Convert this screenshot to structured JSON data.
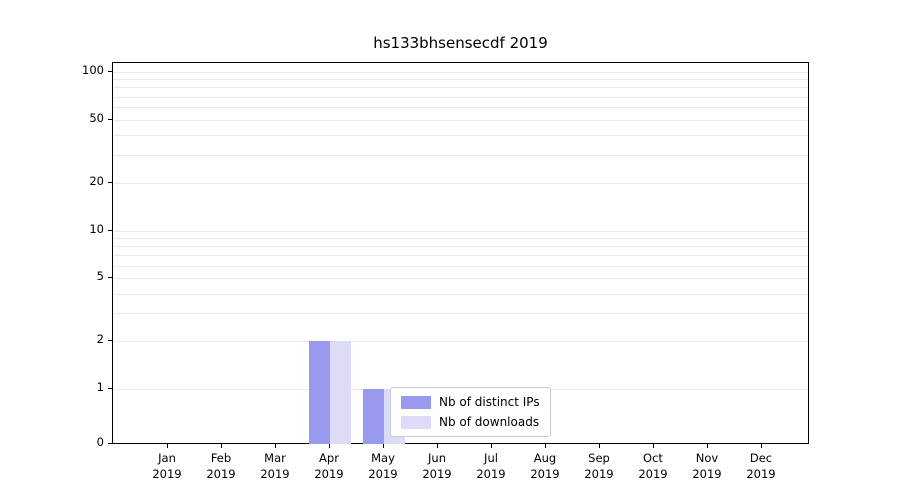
{
  "chart_data": {
    "type": "bar",
    "title": "hs133bhsensecdf 2019",
    "categories": [
      "Jan 2019",
      "Feb 2019",
      "Mar 2019",
      "Apr 2019",
      "May 2019",
      "Jun 2019",
      "Jul 2019",
      "Aug 2019",
      "Sep 2019",
      "Oct 2019",
      "Nov 2019",
      "Dec 2019"
    ],
    "series": [
      {
        "name": "Nb of distinct IPs",
        "color": "#9999ee",
        "values": [
          0,
          0,
          0,
          2,
          1,
          0,
          0,
          0,
          0,
          0,
          0,
          0
        ]
      },
      {
        "name": "Nb of downloads",
        "color": "#dcdcf8",
        "values": [
          0,
          0,
          0,
          2,
          1,
          0,
          0,
          0,
          0,
          0,
          0,
          0
        ]
      }
    ],
    "yscale": "symlog",
    "yticks": [
      0,
      1,
      2,
      5,
      10,
      20,
      50,
      100
    ],
    "ylim": [
      0,
      120
    ],
    "grid": true,
    "legend_position": "lower center",
    "axis_color": "#000000",
    "grid_color": "#ebebeb",
    "background_color": "#ffffff"
  }
}
